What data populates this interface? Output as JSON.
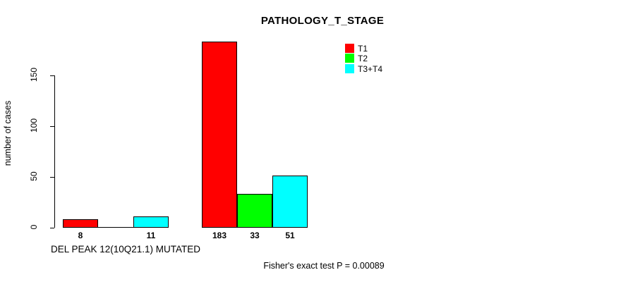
{
  "chart_data": {
    "type": "bar",
    "title": "PATHOLOGY_T_STAGE",
    "ylabel": "number of cases",
    "xlabel": "",
    "group_labels": [
      "DEL PEAK 12(10Q21.1) MUTATED",
      ""
    ],
    "series": [
      {
        "name": "T1",
        "color": "#ff0000",
        "values": [
          8,
          183
        ]
      },
      {
        "name": "T2",
        "color": "#00ff00",
        "values": [
          0,
          33
        ]
      },
      {
        "name": "T3+T4",
        "color": "#00ffff",
        "values": [
          11,
          51
        ]
      }
    ],
    "bar_labels": [
      [
        8,
        null,
        11
      ],
      [
        183,
        33,
        51
      ]
    ],
    "yticks": [
      0,
      50,
      100,
      150
    ],
    "ylim": [
      0,
      190
    ],
    "grid": false,
    "legend_position": "top-right",
    "annotation": "Fisher's exact test P = 0.00089"
  },
  "colors": {
    "background": "#ffffff",
    "axis": "#000000",
    "text": "#000000"
  }
}
